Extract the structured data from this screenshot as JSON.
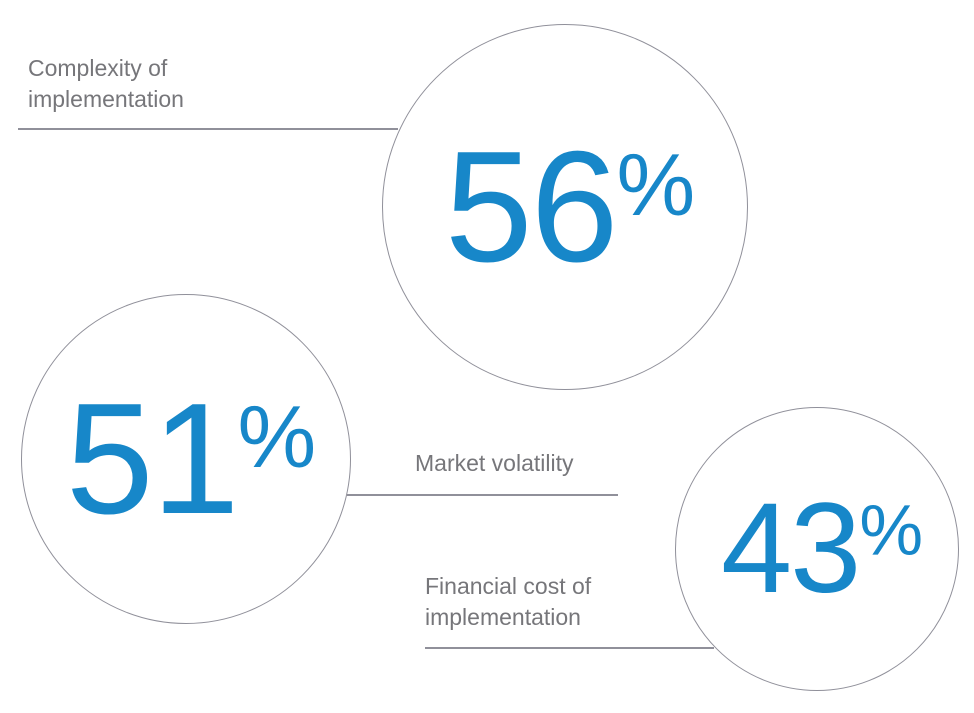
{
  "figure": {
    "background_color": "#ffffff",
    "accent_color": "#1787c9",
    "label_color": "#76767a",
    "line_color": "#90909a",
    "stats": [
      {
        "label": "Complexity of implementation",
        "value": "56",
        "unit": "%"
      },
      {
        "label": "Market volatility",
        "value": "51",
        "unit": "%"
      },
      {
        "label": "Financial cost of implementation",
        "value": "43",
        "unit": "%"
      }
    ]
  },
  "chart_data": {
    "type": "bubble",
    "title": "",
    "categories": [
      "Complexity of implementation",
      "Market volatility",
      "Financial cost of implementation"
    ],
    "values": [
      56,
      51,
      43
    ],
    "unit": "percent",
    "value_range": [
      0,
      100
    ],
    "legend": "none",
    "grid": false,
    "layout_hints": "Three white circles outlined in gray: 56% top-center, 51% mid-left, 43% bottom-right. Each gray text label is underlined by a thin horizontal gray line that connects to its circle's edge.",
    "value_color": "#1787c9",
    "label_color": "#76767a"
  }
}
